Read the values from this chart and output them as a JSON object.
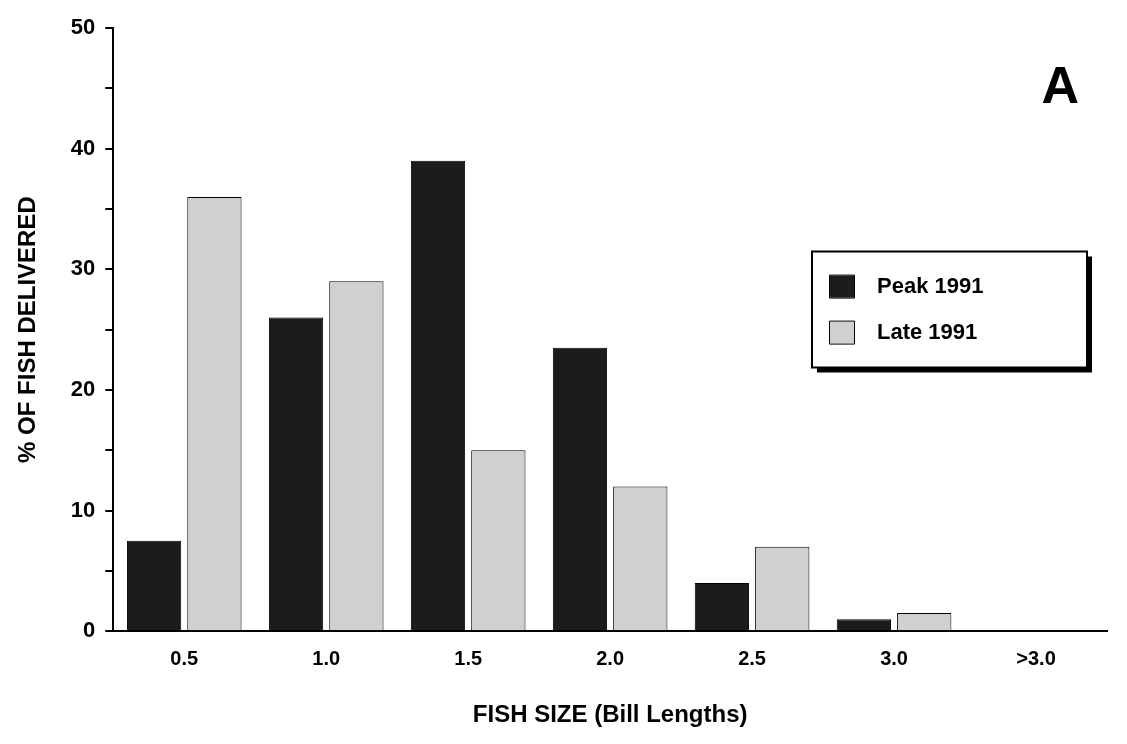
{
  "chart_data": {
    "type": "bar",
    "xlabel": "FISH SIZE (Bill Lengths)",
    "ylabel": "% OF FISH DELIVERED",
    "categories": [
      "0.5",
      "1.0",
      "1.5",
      "2.0",
      "2.5",
      "3.0",
      ">3.0"
    ],
    "series": [
      {
        "name": "Peak 1991",
        "color": "#1c1c1c",
        "values": [
          7.5,
          26,
          39,
          23.5,
          4,
          1,
          0
        ]
      },
      {
        "name": "Late 1991",
        "color": "#d0d0d0",
        "values": [
          36,
          29,
          15,
          12,
          7,
          1.5,
          0
        ]
      }
    ],
    "ylim": [
      0,
      50
    ],
    "yticks": [
      0,
      {
        "value": 5,
        "label": null
      },
      10,
      {
        "value": 15,
        "label": null
      },
      20,
      {
        "value": 25,
        "label": null
      },
      30,
      {
        "value": 35,
        "label": null
      },
      40,
      {
        "value": 45,
        "label": null
      },
      50
    ],
    "grid": false,
    "legend": "right",
    "annotations": [
      "A"
    ]
  }
}
